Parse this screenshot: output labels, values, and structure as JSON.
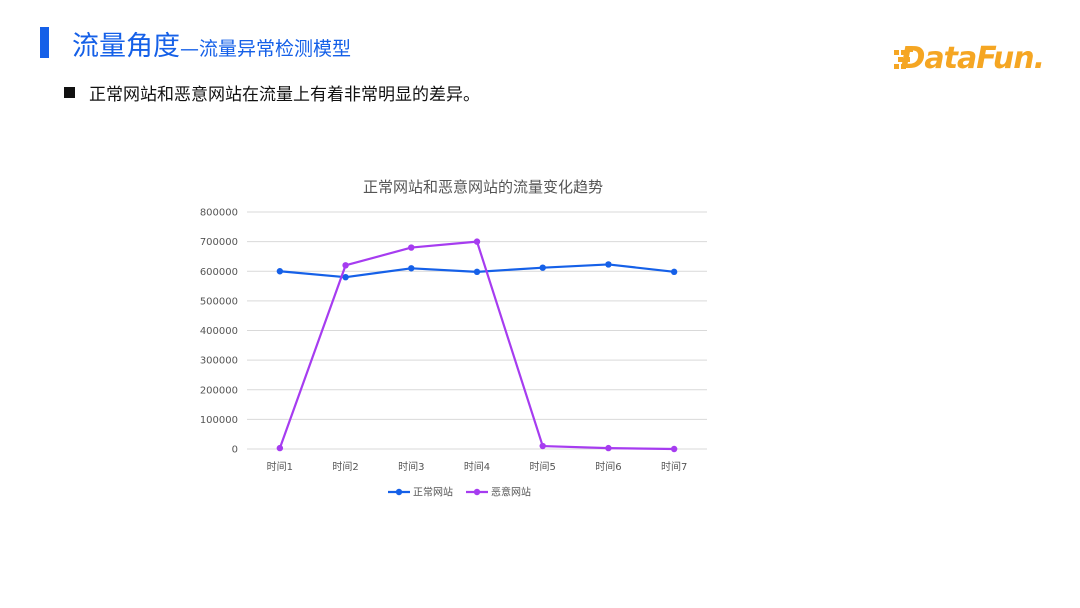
{
  "header": {
    "title_main": "流量角度",
    "title_sub": "—流量异常检测模型",
    "logo_text": "DataFun."
  },
  "bullet": {
    "text": "正常网站和恶意网站在流量上有着非常明显的差异。"
  },
  "colors": {
    "accent": "#1560e8",
    "logo": "#f5a623",
    "series_normal": "#1560e8",
    "series_malicious": "#a63cf0"
  },
  "chart_data": {
    "type": "line",
    "title": "正常网站和恶意网站的流量变化趋势",
    "xlabel": "",
    "ylabel": "",
    "categories": [
      "时间1",
      "时间2",
      "时间3",
      "时间4",
      "时间5",
      "时间6",
      "时间7"
    ],
    "ylim": [
      0,
      800000
    ],
    "yticks": [
      "0",
      "100000",
      "200000",
      "300000",
      "400000",
      "500000",
      "600000",
      "700000",
      "800000"
    ],
    "grid": true,
    "legend_position": "bottom",
    "series": [
      {
        "name": "正常网站",
        "values": [
          600000,
          580000,
          610000,
          598000,
          612000,
          623000,
          598000
        ]
      },
      {
        "name": "恶意网站",
        "values": [
          3000,
          620000,
          680000,
          700000,
          10000,
          3000,
          0
        ]
      }
    ]
  }
}
